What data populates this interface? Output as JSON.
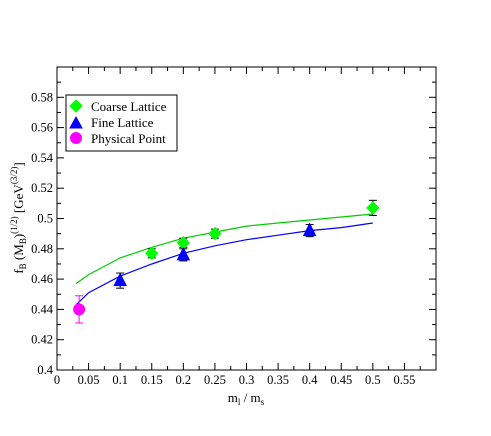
{
  "chart_data": {
    "type": "scatter",
    "title": "",
    "xlabel": {
      "base": "m",
      "sub1": "l",
      "mid": " / m",
      "sub2": "s"
    },
    "ylabel": {
      "f": "f",
      "fsub": "B",
      "open": " (M",
      "msub": "B",
      "close": ")",
      "exp": "(1/2)",
      "unit_open": "  [GeV",
      "unit_exp": "(3/2)",
      "unit_close": "]"
    },
    "xlim": [
      0,
      0.6
    ],
    "ylim": [
      0.4,
      0.6
    ],
    "x_ticks": [
      0,
      0.05,
      0.1,
      0.15,
      0.2,
      0.25,
      0.3,
      0.35,
      0.4,
      0.45,
      0.5,
      0.55
    ],
    "x_tick_labels": [
      "0",
      "0.05",
      "0.1",
      "0.15",
      "0.2",
      "0.25",
      "0.3",
      "0.35",
      "0.4",
      "0.45",
      "0.5",
      "0.55"
    ],
    "y_ticks": [
      0.4,
      0.42,
      0.44,
      0.46,
      0.48,
      0.5,
      0.52,
      0.54,
      0.56,
      0.58
    ],
    "y_tick_labels": [
      "0.4",
      "0.42",
      "0.44",
      "0.46",
      "0.48",
      "0.5",
      "0.52",
      "0.54",
      "0.56",
      "0.58"
    ],
    "grid": false,
    "legend_position": "top-left",
    "series": [
      {
        "name": "Coarse Lattice",
        "marker": "diamond",
        "color": "#00ff00",
        "points": [
          {
            "x": 0.15,
            "y": 0.477,
            "err": 0.003
          },
          {
            "x": 0.2,
            "y": 0.484,
            "err": 0.003
          },
          {
            "x": 0.25,
            "y": 0.49,
            "err": 0.003
          },
          {
            "x": 0.5,
            "y": 0.507,
            "err": 0.005
          }
        ]
      },
      {
        "name": "Fine Lattice",
        "marker": "triangle",
        "color": "#0000ff",
        "points": [
          {
            "x": 0.1,
            "y": 0.459,
            "err": 0.005
          },
          {
            "x": 0.2,
            "y": 0.476,
            "err": 0.004
          },
          {
            "x": 0.4,
            "y": 0.492,
            "err": 0.004
          }
        ]
      },
      {
        "name": "Physical Point",
        "marker": "circle",
        "color": "#ff00ff",
        "points": [
          {
            "x": 0.035,
            "y": 0.44,
            "err": 0.009
          }
        ]
      }
    ],
    "fit_curves": [
      {
        "color": "#00cc00",
        "points": [
          [
            0.03,
            0.457
          ],
          [
            0.05,
            0.463
          ],
          [
            0.1,
            0.474
          ],
          [
            0.15,
            0.481
          ],
          [
            0.2,
            0.487
          ],
          [
            0.25,
            0.491
          ],
          [
            0.3,
            0.495
          ],
          [
            0.35,
            0.497
          ],
          [
            0.4,
            0.499
          ],
          [
            0.45,
            0.501
          ],
          [
            0.5,
            0.503
          ]
        ]
      },
      {
        "color": "#0000ff",
        "points": [
          [
            0.03,
            0.443
          ],
          [
            0.05,
            0.451
          ],
          [
            0.1,
            0.462
          ],
          [
            0.15,
            0.47
          ],
          [
            0.2,
            0.477
          ],
          [
            0.25,
            0.482
          ],
          [
            0.3,
            0.486
          ],
          [
            0.35,
            0.489
          ],
          [
            0.4,
            0.492
          ],
          [
            0.45,
            0.494
          ],
          [
            0.5,
            0.497
          ]
        ]
      }
    ]
  }
}
